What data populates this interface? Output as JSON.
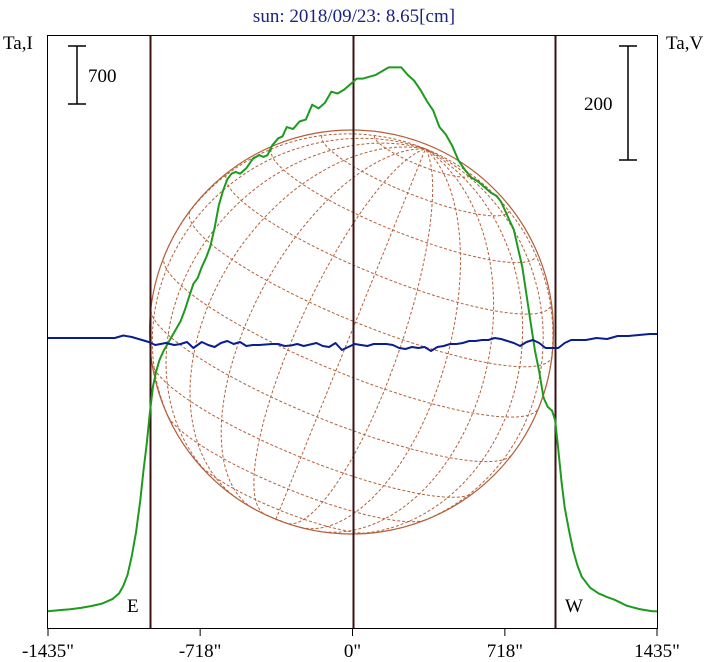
{
  "chart_data": {
    "type": "line",
    "title": "sun: 2018/09/23: 8.65[cm]",
    "left_axis_label": "Ta,I",
    "right_axis_label": "Ta,V",
    "scale_bars": {
      "left": "700",
      "right": "200"
    },
    "xlim": [
      -1435,
      1435
    ],
    "x_ticks": [
      {
        "value": -1435,
        "label": "-1435\""
      },
      {
        "value": -718,
        "label": "-718\""
      },
      {
        "value": 0,
        "label": "0\""
      },
      {
        "value": 718,
        "label": "718\""
      },
      {
        "value": 1435,
        "label": "1435\""
      }
    ],
    "limb_labels": {
      "east": "E",
      "west": "W"
    },
    "limb_x": [
      -955,
      955
    ],
    "colors": {
      "intensity": "#1e9a1e",
      "polarization": "#0a1f8f",
      "sun_disk": "#b5603a",
      "frame": "#000000",
      "title": "#1a237e"
    },
    "series": [
      {
        "key": "I",
        "x": [
          -1435,
          -1380,
          -1330,
          -1280,
          -1230,
          -1180,
          -1130,
          -1100,
          -1080,
          -1060,
          -1040,
          -1020,
          -1000,
          -985,
          -970,
          -955,
          -940,
          -925,
          -910,
          -890,
          -870,
          -850,
          -830,
          -810,
          -790,
          -770,
          -750,
          -730,
          -710,
          -690,
          -670,
          -650,
          -630,
          -610,
          -590,
          -570,
          -550,
          -530,
          -500,
          -470,
          -440,
          -420,
          -400,
          -380,
          -350,
          -330,
          -310,
          -280,
          -250,
          -220,
          -190,
          -160,
          -130,
          -100,
          -70,
          -40,
          -10,
          20,
          50,
          80,
          110,
          140,
          170,
          200,
          230,
          260,
          290,
          320,
          350,
          380,
          410,
          440,
          470,
          500,
          530,
          560,
          590,
          620,
          650,
          680,
          700,
          720,
          740,
          760,
          780,
          800,
          820,
          840,
          860,
          880,
          900,
          920,
          940,
          955,
          970,
          985,
          1000,
          1020,
          1040,
          1060,
          1080,
          1100,
          1120,
          1140,
          1160,
          1180,
          1200,
          1230,
          1260,
          1290,
          1320,
          1350,
          1380,
          1410,
          1435
        ],
        "y": [
          4,
          10,
          15,
          22,
          32,
          45,
          70,
          100,
          140,
          200,
          300,
          430,
          600,
          760,
          900,
          1070,
          1210,
          1290,
          1350,
          1400,
          1440,
          1480,
          1520,
          1560,
          1620,
          1690,
          1760,
          1790,
          1850,
          1900,
          1960,
          2060,
          2180,
          2260,
          2320,
          2350,
          2360,
          2350,
          2380,
          2430,
          2450,
          2440,
          2450,
          2500,
          2540,
          2550,
          2600,
          2590,
          2630,
          2640,
          2720,
          2700,
          2730,
          2790,
          2780,
          2800,
          2830,
          2860,
          2860,
          2870,
          2880,
          2900,
          2920,
          2920,
          2920,
          2880,
          2850,
          2800,
          2740,
          2690,
          2600,
          2560,
          2500,
          2420,
          2370,
          2330,
          2310,
          2280,
          2250,
          2230,
          2200,
          2150,
          2100,
          2050,
          1950,
          1850,
          1700,
          1550,
          1400,
          1290,
          1150,
          1100,
          1080,
          1030,
          870,
          700,
          560,
          440,
          330,
          250,
          190,
          160,
          130,
          115,
          100,
          90,
          80,
          68,
          52,
          35,
          25,
          16,
          10,
          5,
          3
        ]
      },
      {
        "key": "V",
        "x": [
          -1435,
          -1300,
          -1200,
          -1120,
          -1080,
          -1040,
          -1000,
          -960,
          -930,
          -880,
          -840,
          -810,
          -780,
          -750,
          -710,
          -680,
          -650,
          -620,
          -590,
          -560,
          -530,
          -500,
          -470,
          -440,
          -410,
          -380,
          -350,
          -320,
          -290,
          -260,
          -230,
          -200,
          -170,
          -140,
          -110,
          -80,
          -50,
          -20,
          10,
          40,
          70,
          100,
          130,
          160,
          190,
          220,
          250,
          280,
          310,
          340,
          370,
          400,
          430,
          460,
          490,
          520,
          550,
          580,
          610,
          640,
          670,
          700,
          730,
          760,
          790,
          820,
          850,
          880,
          910,
          940,
          970,
          1000,
          1030,
          1060,
          1100,
          1150,
          1200,
          1250,
          1300,
          1350,
          1400,
          1435
        ],
        "y": [
          0,
          0,
          0,
          0,
          5,
          2,
          -3,
          -8,
          -14,
          -10,
          -14,
          -12,
          -8,
          -20,
          -8,
          -14,
          -18,
          -10,
          -6,
          -12,
          -8,
          -16,
          -14,
          -14,
          -13,
          -12,
          -12,
          -16,
          -15,
          -12,
          -16,
          -13,
          -10,
          -16,
          -18,
          -10,
          -24,
          -18,
          -12,
          -14,
          -16,
          -12,
          -12,
          -12,
          -14,
          -20,
          -22,
          -18,
          -20,
          -18,
          -26,
          -18,
          -16,
          -12,
          -12,
          -10,
          -6,
          -6,
          -4,
          -4,
          0,
          -2,
          -6,
          -10,
          -16,
          -8,
          -4,
          -10,
          -20,
          -20,
          -20,
          -10,
          -4,
          -4,
          -4,
          0,
          -2,
          4,
          4,
          6,
          8,
          8
        ]
      }
    ]
  }
}
